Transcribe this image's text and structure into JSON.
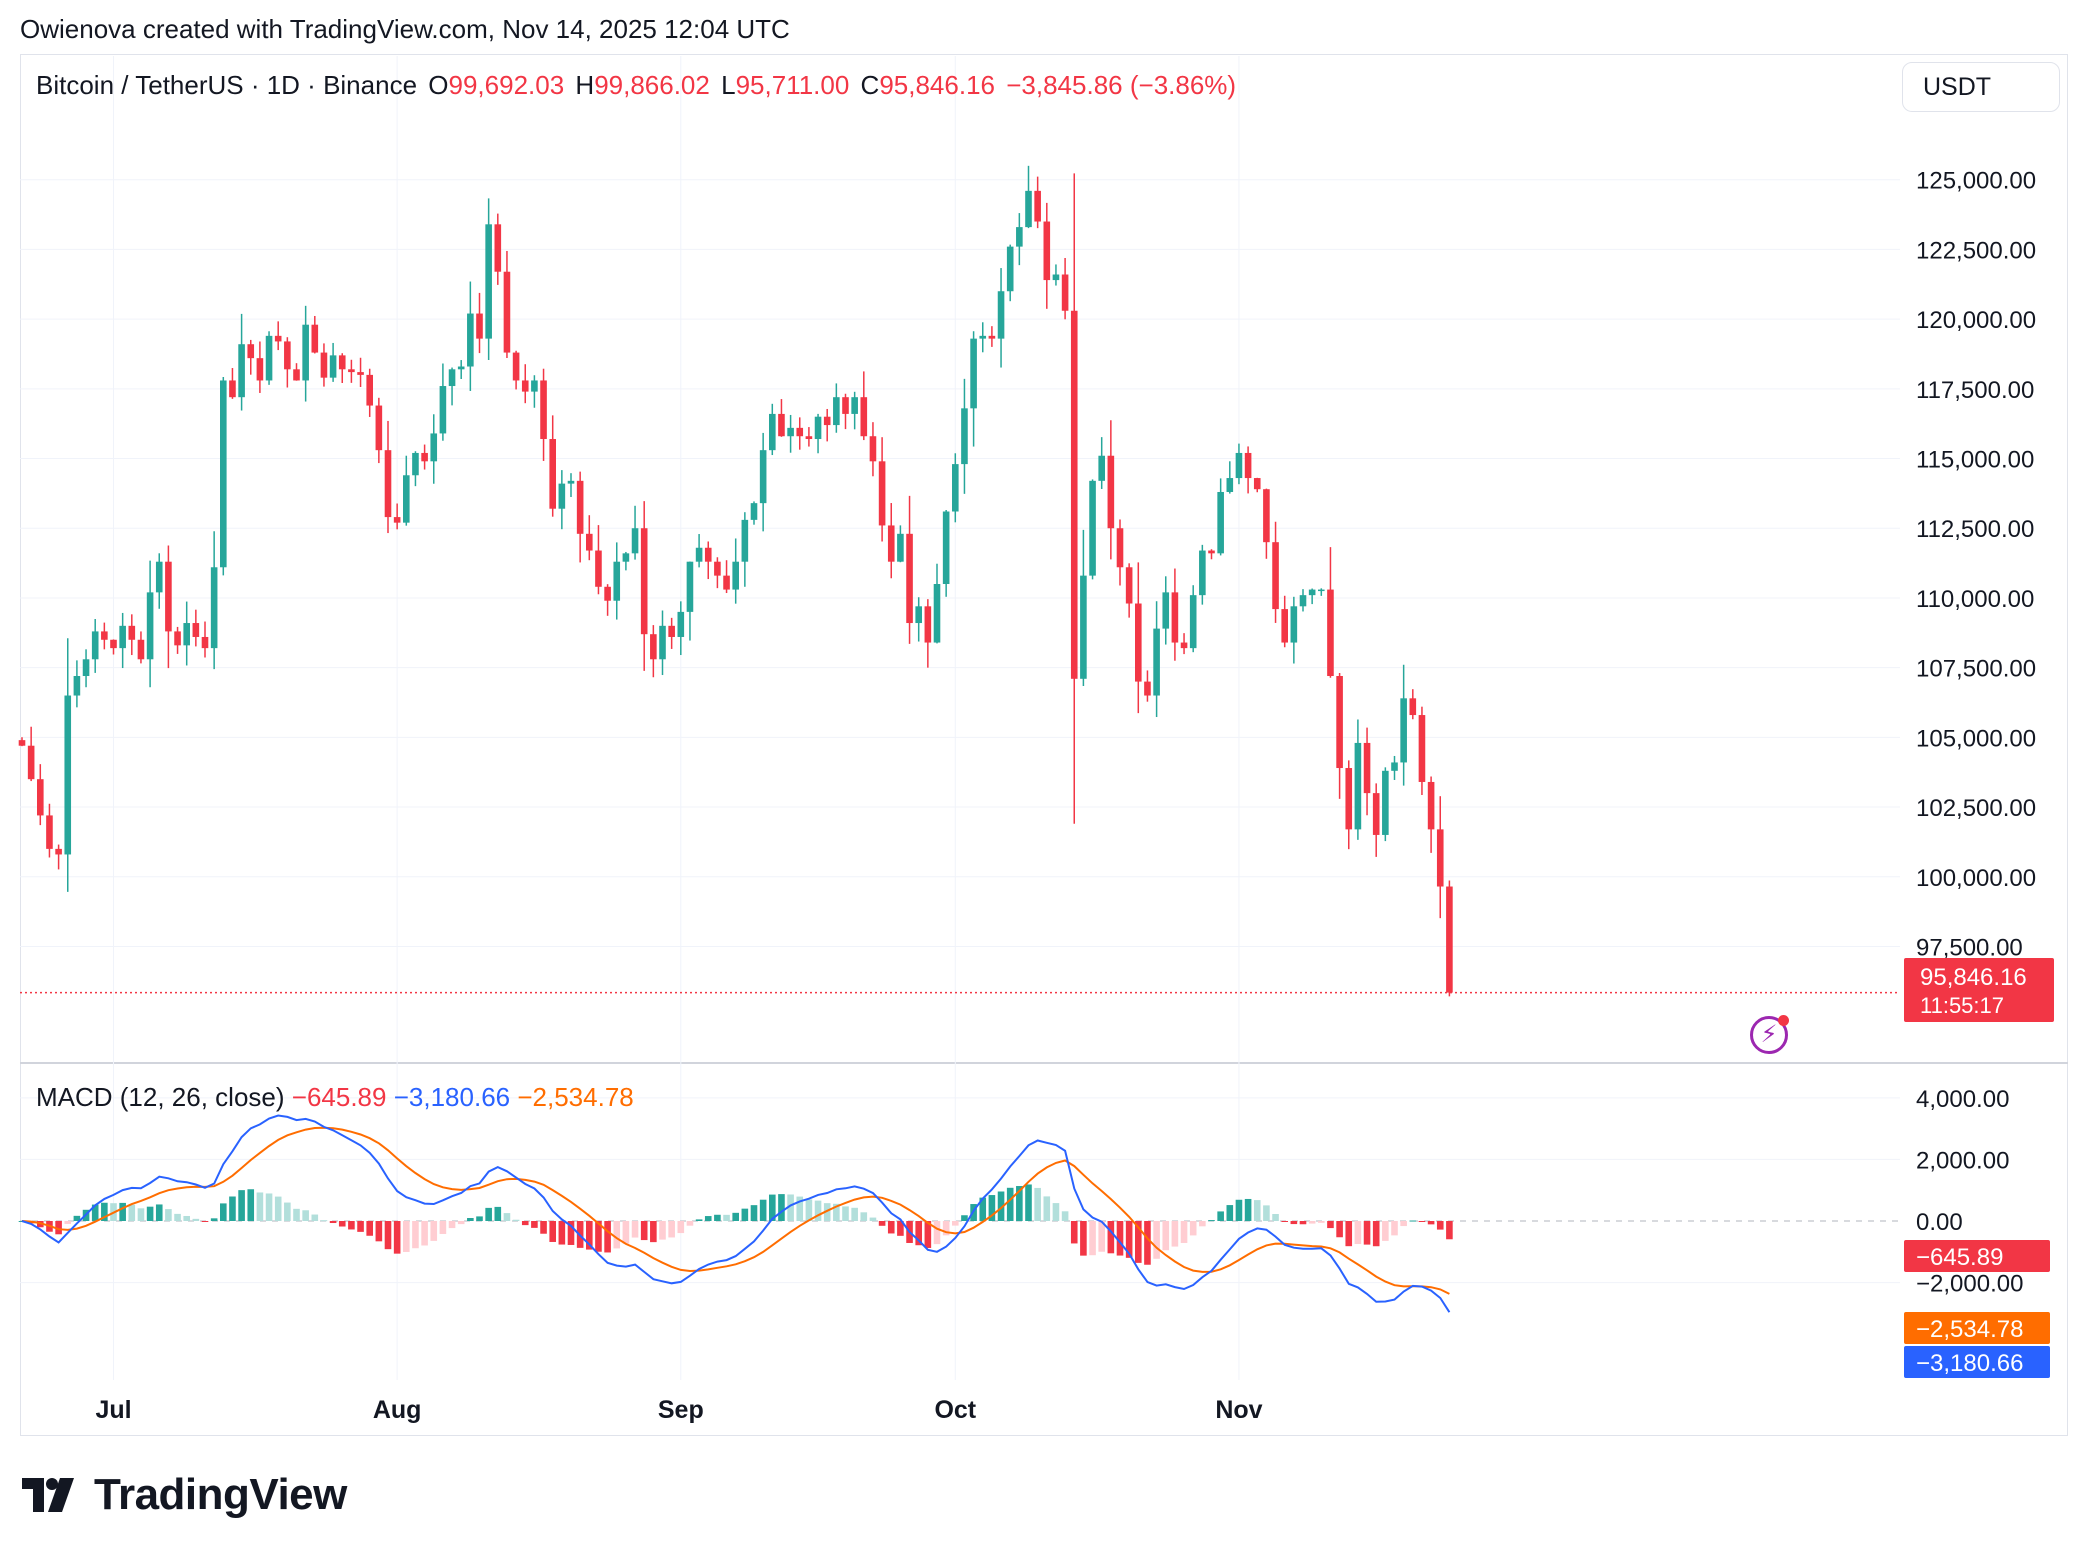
{
  "header": {
    "attribution": "Owienova created with TradingView.com, Nov 14, 2025 12:04 UTC"
  },
  "legend": {
    "symbol": "Bitcoin / TetherUS · 1D · Binance",
    "open_label": "O",
    "open": "99,692.03",
    "high_label": "H",
    "high": "99,866.02",
    "low_label": "L",
    "low": "95,711.00",
    "close_label": "C",
    "close": "95,846.16",
    "change": "−3,845.86 (−3.86%)"
  },
  "currency_selector": "USDT",
  "macd_legend": {
    "name": "MACD (12, 26, close)",
    "histogram": "−645.89",
    "macd": "−3,180.66",
    "signal": "−2,534.78"
  },
  "price_badge": {
    "price": "95,846.16",
    "countdown": "11:55:17"
  },
  "macd_badges": {
    "histogram": "−645.89",
    "signal": "−2,534.78",
    "macd": "−3,180.66"
  },
  "branding": {
    "logo_text": "TradingView"
  },
  "colors": {
    "up": "#26a69a",
    "down": "#f23645",
    "macd_line": "#2962ff",
    "signal_line": "#ff6d00",
    "hist_up_strong": "#26a69a",
    "hist_up_weak": "#b2dfdb",
    "hist_down_strong": "#f23645",
    "hist_down_weak": "#ffcdd2"
  },
  "chart_data": [
    {
      "type": "candlestick",
      "title": "Bitcoin / TetherUS · 1D · Binance",
      "ylabel": "USDT",
      "ylim": [
        93500,
        127500
      ],
      "y_ticks": [
        "97,500.00",
        "100,000.00",
        "102,500.00",
        "105,000.00",
        "107,500.00",
        "110,000.00",
        "112,500.00",
        "115,000.00",
        "117,500.00",
        "120,000.00",
        "122,500.00",
        "125,000.00"
      ],
      "y_tick_values": [
        97500,
        100000,
        102500,
        105000,
        107500,
        110000,
        112500,
        115000,
        117500,
        120000,
        122500,
        125000
      ],
      "x_ticks": [
        {
          "label": "Jul",
          "day": 10
        },
        {
          "label": "Aug",
          "day": 41
        },
        {
          "label": "Sep",
          "day": 72
        },
        {
          "label": "Oct",
          "day": 102
        },
        {
          "label": "Nov",
          "day": 133
        }
      ],
      "last_price": 95846.16,
      "closes": [
        104700,
        103500,
        102200,
        101000,
        100800,
        106500,
        107200,
        107800,
        108800,
        108500,
        108200,
        109000,
        108500,
        107800,
        110200,
        111300,
        108800,
        108300,
        109100,
        108600,
        108200,
        111100,
        117800,
        117200,
        119100,
        118600,
        117800,
        119400,
        119200,
        118200,
        117800,
        119800,
        118800,
        117900,
        118700,
        118200,
        118100,
        118000,
        116900,
        115300,
        112900,
        112700,
        114400,
        115200,
        114900,
        115900,
        117600,
        118200,
        118300,
        120200,
        119300,
        123400,
        121700,
        118800,
        117800,
        117400,
        117800,
        115700,
        113200,
        114100,
        114200,
        112300,
        111700,
        110400,
        109900,
        111300,
        111600,
        112500,
        108700,
        107800,
        109000,
        108600,
        109500,
        111300,
        111800,
        111300,
        110800,
        110300,
        111300,
        112800,
        113400,
        115300,
        116600,
        115800,
        116100,
        115800,
        115700,
        116500,
        116200,
        117200,
        116600,
        117200,
        115800,
        114900,
        112600,
        111300,
        112300,
        109100,
        109700,
        108400,
        110500,
        113100,
        114800,
        116800,
        119300,
        119400,
        119300,
        121000,
        122600,
        123300,
        124600,
        123500,
        121400,
        121600,
        120300,
        107100,
        110800,
        114200,
        115100,
        112500,
        111100,
        109800,
        107000,
        106500,
        108900,
        110200,
        108400,
        108200,
        110100,
        111700,
        111600,
        113800,
        114300,
        115200,
        114300,
        113900,
        112000,
        109600,
        108400,
        109700,
        110100,
        110300,
        110300,
        107200,
        103900,
        101700,
        104800,
        103000,
        101500,
        103800,
        104100,
        106400,
        105800,
        103400,
        101700,
        99650,
        95846.16
      ],
      "highs_note": "approximate OHLC derived from visible candles"
    },
    {
      "type": "line",
      "title": "MACD (12, 26, close)",
      "ylim": [
        -5100,
        5100
      ],
      "y_ticks": [
        "4,000.00",
        "2,000.00",
        "0.00",
        "−2,000.00"
      ],
      "y_tick_values": [
        4000,
        2000,
        0,
        -2000
      ],
      "series": [
        {
          "name": "MACD",
          "values_note": "computed from closes with EMA 12/26"
        },
        {
          "name": "Signal",
          "values_note": "EMA 9 of MACD"
        },
        {
          "name": "Histogram",
          "values_note": "MACD − Signal"
        }
      ],
      "last_values": {
        "histogram": -645.89,
        "macd": -3180.66,
        "signal": -2534.78
      }
    }
  ]
}
